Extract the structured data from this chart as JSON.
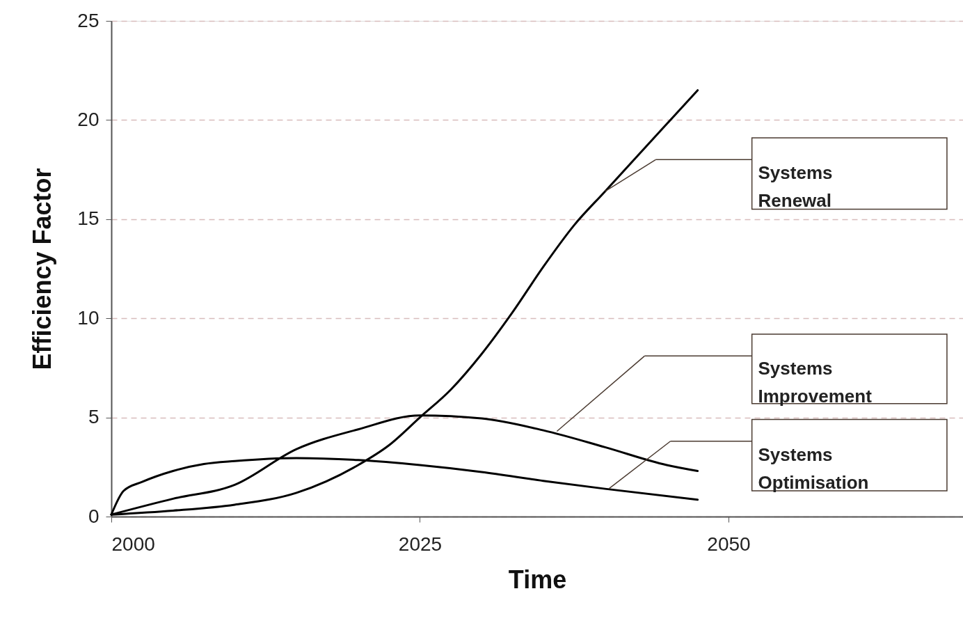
{
  "chart_data": {
    "type": "line",
    "xlabel": "Time",
    "ylabel": "Efficiency Factor",
    "xlim": [
      2000,
      2069
    ],
    "xticks": [
      2000,
      2025,
      2050
    ],
    "ylim": [
      0,
      25
    ],
    "yticks": [
      0,
      5,
      10,
      15,
      20,
      25
    ],
    "grid": "y",
    "legend": false,
    "marker": "none",
    "line_style": "solid",
    "series": [
      {
        "color": "#000000",
        "x": [
          2000,
          2005,
          2010,
          2015,
          2020,
          2022.5,
          2025,
          2027.5,
          2030,
          2032.5,
          2035,
          2037.5,
          2040,
          2045,
          2047.5
        ],
        "values": [
          0.1,
          0.3,
          0.6,
          1.2,
          2.6,
          3.6,
          5.0,
          6.4,
          8.2,
          10.3,
          12.6,
          14.7,
          16.4,
          19.8,
          21.5
        ]
      },
      {
        "color": "#000000",
        "x": [
          2000,
          2005,
          2010,
          2015,
          2020,
          2025,
          2030,
          2035,
          2040,
          2045,
          2047.5
        ],
        "values": [
          0.1,
          0.9,
          1.6,
          3.4,
          4.4,
          5.1,
          4.95,
          4.35,
          3.5,
          2.6,
          2.3
        ]
      },
      {
        "color": "#000000",
        "x": [
          2000,
          2001,
          2002.5,
          2005,
          2007.5,
          2010,
          2015,
          2020,
          2025,
          2030,
          2035,
          2040,
          2047.5
        ],
        "values": [
          0.1,
          1.3,
          1.75,
          2.3,
          2.65,
          2.8,
          2.95,
          2.85,
          2.6,
          2.25,
          1.8,
          1.4,
          0.85
        ]
      }
    ],
    "annotations": [
      "Systems Renewal",
      "Systems Improvement",
      "Systems Optimisation"
    ]
  }
}
